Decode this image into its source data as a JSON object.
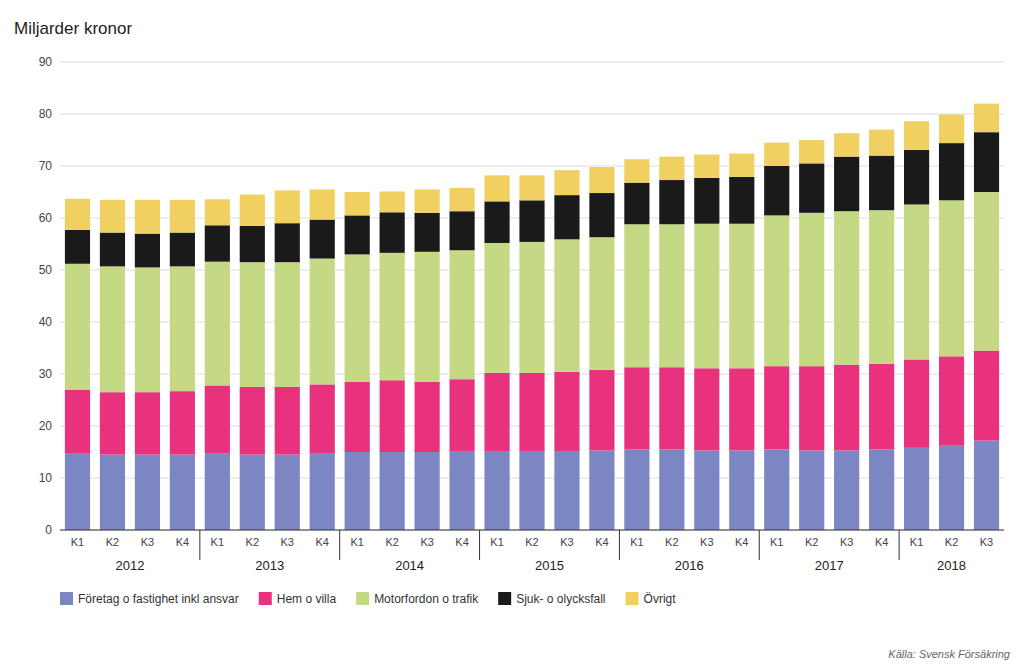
{
  "chart_data": {
    "type": "bar",
    "stacked": true,
    "title": "Miljarder kronor",
    "source": "Källa: Svensk Försäkring",
    "categories": [
      "K1",
      "K2",
      "K3",
      "K4",
      "K1",
      "K2",
      "K3",
      "K4",
      "K1",
      "K2",
      "K3",
      "K4",
      "K1",
      "K2",
      "K3",
      "K4",
      "K1",
      "K2",
      "K3",
      "K4",
      "K1",
      "K2",
      "K3",
      "K4",
      "K1",
      "K2",
      "K3"
    ],
    "annotations": [
      {
        "text": "2012",
        "first": 0,
        "last": 3
      },
      {
        "text": "2013",
        "first": 4,
        "last": 7
      },
      {
        "text": "2014",
        "first": 8,
        "last": 11
      },
      {
        "text": "2015",
        "first": 12,
        "last": 15
      },
      {
        "text": "2016",
        "first": 16,
        "last": 19
      },
      {
        "text": "2017",
        "first": 20,
        "last": 23
      },
      {
        "text": "2018",
        "first": 24,
        "last": 26
      }
    ],
    "series": [
      {
        "name": "Företag o fastighet inkl ansvar",
        "color": "#7B86C2",
        "values": [
          14.8,
          14.5,
          14.5,
          14.5,
          14.8,
          14.5,
          14.5,
          14.8,
          15.0,
          15.0,
          15.0,
          15.2,
          15.2,
          15.2,
          15.2,
          15.3,
          15.5,
          15.5,
          15.3,
          15.3,
          15.5,
          15.3,
          15.3,
          15.5,
          15.8,
          16.2,
          17.2
        ]
      },
      {
        "name": "Hem o villa",
        "color": "#E8327D",
        "values": [
          12.2,
          12.0,
          12.0,
          12.2,
          13.0,
          13.0,
          13.0,
          13.2,
          13.5,
          13.8,
          13.5,
          13.8,
          15.0,
          15.0,
          15.2,
          15.5,
          15.8,
          15.8,
          15.8,
          15.8,
          16.0,
          16.2,
          16.5,
          16.5,
          17.0,
          17.2,
          17.3
        ]
      },
      {
        "name": "Motorfordon o trafik",
        "color": "#C5D985",
        "values": [
          24.2,
          24.2,
          24.0,
          24.0,
          23.8,
          24.0,
          24.0,
          24.2,
          24.5,
          24.5,
          25.0,
          24.8,
          25.0,
          25.2,
          25.5,
          25.5,
          27.5,
          27.5,
          27.8,
          27.8,
          29.0,
          29.5,
          29.5,
          29.5,
          29.8,
          30.0,
          30.5
        ]
      },
      {
        "name": "Sjuk- o olycksfall",
        "color": "#1A1A1A",
        "values": [
          6.5,
          6.5,
          6.5,
          6.5,
          7.0,
          7.0,
          7.5,
          7.5,
          7.5,
          7.8,
          7.5,
          7.5,
          8.0,
          8.0,
          8.5,
          8.5,
          8.0,
          8.5,
          8.8,
          9.0,
          9.5,
          9.5,
          10.5,
          10.5,
          10.5,
          11.0,
          11.5
        ]
      },
      {
        "name": "Övrigt",
        "color": "#F0D060",
        "values": [
          6.0,
          6.3,
          6.5,
          6.3,
          5.0,
          6.0,
          6.3,
          5.8,
          4.5,
          4.0,
          4.5,
          4.5,
          5.0,
          4.8,
          4.8,
          5.0,
          4.5,
          4.5,
          4.5,
          4.5,
          4.5,
          4.5,
          4.5,
          5.0,
          5.5,
          5.5,
          5.5
        ]
      }
    ],
    "ylim": [
      0,
      90
    ],
    "yticks": [
      0,
      10,
      20,
      30,
      40,
      50,
      60,
      70,
      80,
      90
    ],
    "grid": true,
    "legend": "bottom"
  }
}
